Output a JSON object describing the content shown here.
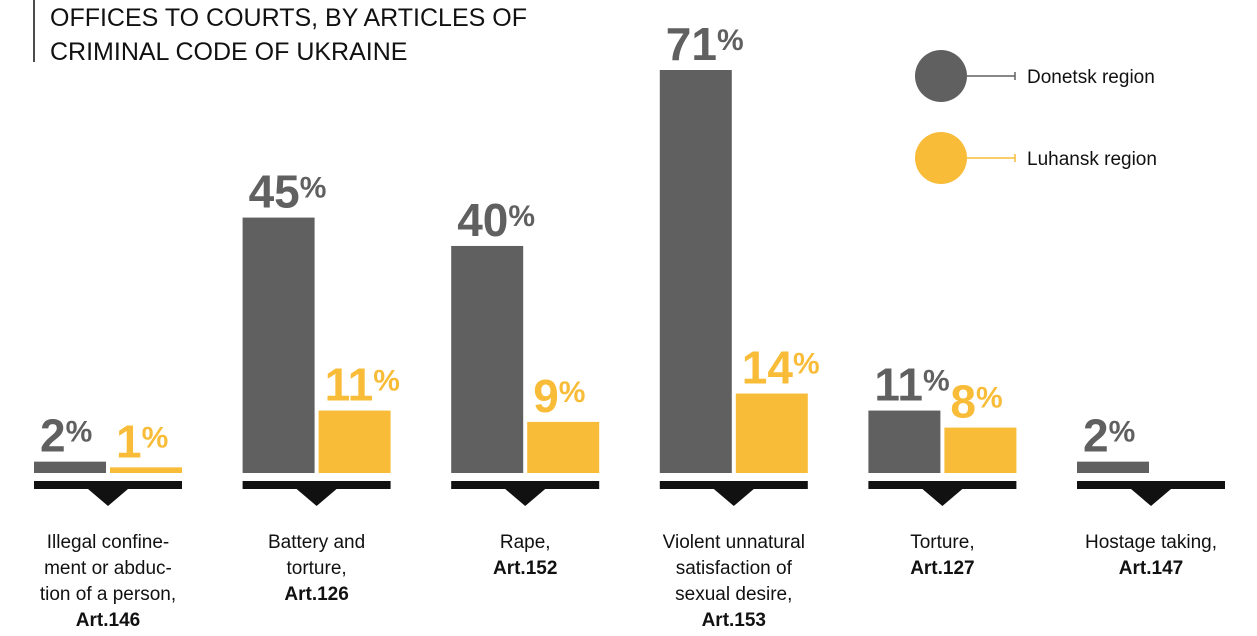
{
  "chart_data": {
    "type": "bar",
    "title": [
      "OFFICES TO COURTS, BY ARTICLES OF",
      "CRIMINAL CODE OF UKRAINE"
    ],
    "categories": [
      [
        "Illegal confine-",
        "ment or abduc-",
        "tion of a person,"
      ],
      [
        "Battery and",
        "torture,"
      ],
      [
        "Rape,"
      ],
      [
        "Violent unnatural",
        "satisfaction of",
        "sexual desire,"
      ],
      [
        "Torture,"
      ],
      [
        "Hostage taking,"
      ]
    ],
    "articles": [
      "Art.146",
      "Art.126",
      "Art.152",
      "Art.153",
      "Art.127",
      "Art.147"
    ],
    "series": [
      {
        "name": "Donetsk region",
        "color": "#606060",
        "values": [
          2,
          45,
          40,
          71,
          11,
          2
        ],
        "value_labels": [
          "2%",
          "45%",
          "40%",
          "71%",
          "11%",
          "2%"
        ]
      },
      {
        "name": "Luhansk region",
        "color": "#f9bc39",
        "values": [
          1,
          11,
          9,
          14,
          8,
          null
        ],
        "value_labels": [
          "1%",
          "11%",
          "9%",
          "14%",
          "8%",
          null
        ]
      }
    ],
    "legend": "top-right"
  }
}
